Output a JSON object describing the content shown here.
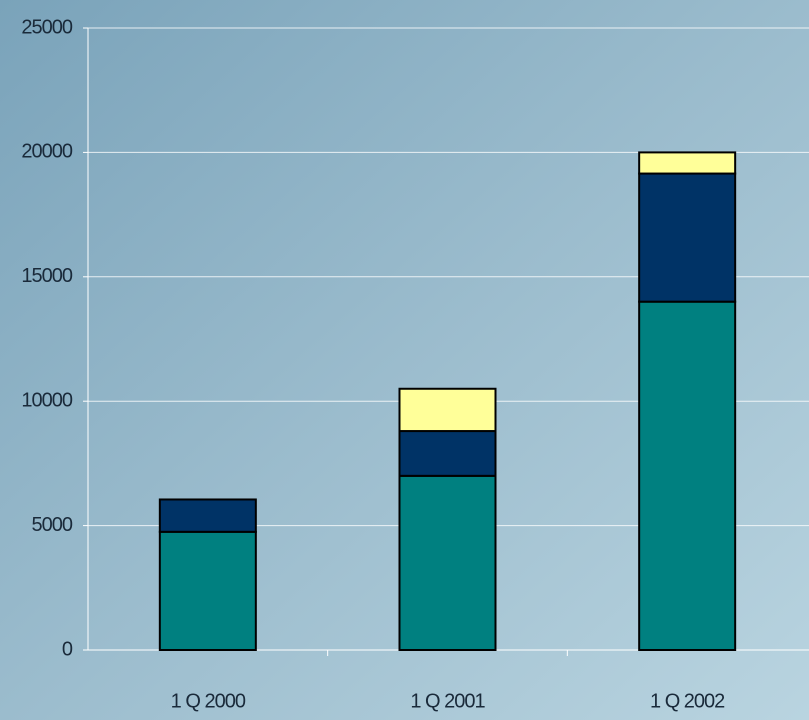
{
  "chart_data": {
    "type": "stacked_bar",
    "categories": [
      "1 Q 2000",
      "1 Q 2001",
      "1 Q 2002"
    ],
    "series": [
      {
        "color": "#008080",
        "values": [
          4750,
          7000,
          14000
        ]
      },
      {
        "color": "#003366",
        "values": [
          1300,
          1800,
          5150
        ]
      },
      {
        "color": "#ffff99",
        "values": [
          0,
          1700,
          850
        ]
      }
    ],
    "ylim": [
      0,
      25000
    ],
    "yticks": [
      0,
      5000,
      10000,
      15000,
      20000,
      25000
    ],
    "grid": true
  }
}
